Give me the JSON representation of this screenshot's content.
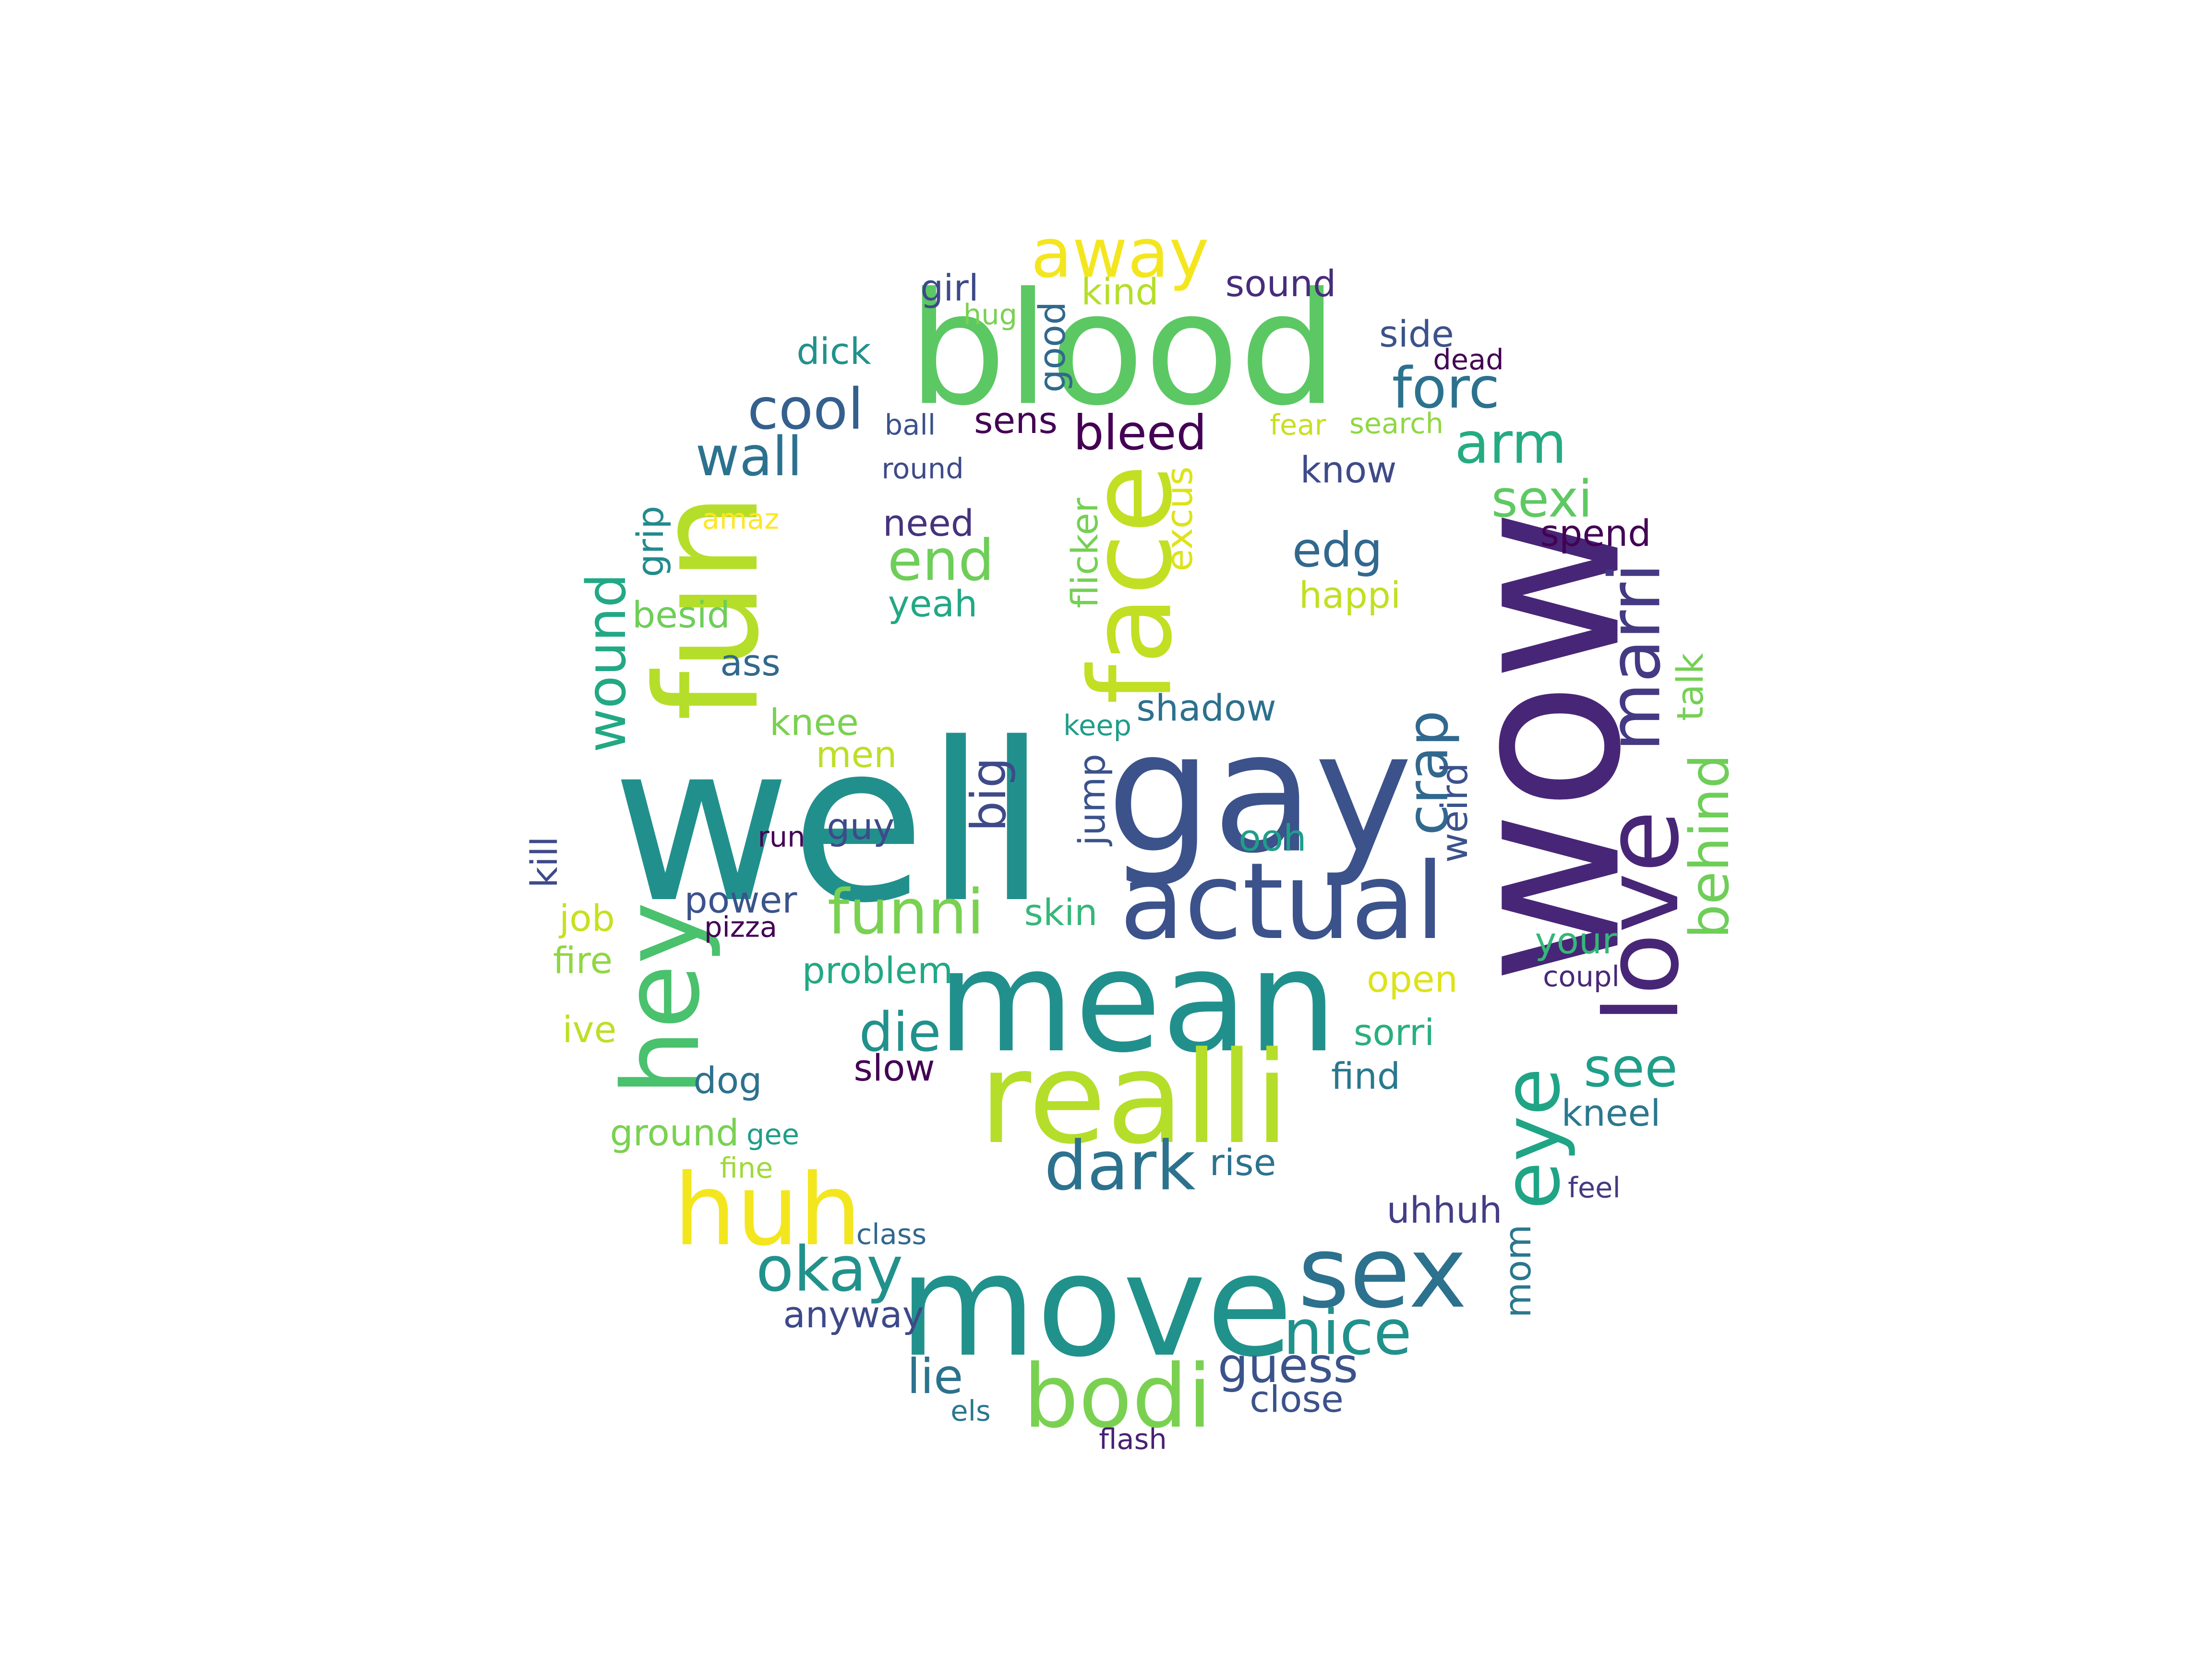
{
  "colors": {
    "background": "#ffffff",
    "palette": [
      "#440154",
      "#472c7a",
      "#3b518b",
      "#2c718e",
      "#21908d",
      "#27ad81",
      "#5cc863",
      "#aadc32",
      "#fde725"
    ]
  },
  "words": [
    {
      "text": "well",
      "weight": 1.0,
      "color": "#21908d"
    },
    {
      "text": "wow",
      "weight": 0.9,
      "color": "#482677"
    },
    {
      "text": "gay",
      "weight": 0.78,
      "color": "#3b528b"
    },
    {
      "text": "blood",
      "weight": 0.74,
      "color": "#5cc863"
    },
    {
      "text": "mean",
      "weight": 0.66,
      "color": "#21908d"
    },
    {
      "text": "move",
      "weight": 0.66,
      "color": "#21918c"
    },
    {
      "text": "fun",
      "weight": 0.62,
      "color": "#b5de2b"
    },
    {
      "text": "realli",
      "weight": 0.58,
      "color": "#b5de2b"
    },
    {
      "text": "face",
      "weight": 0.54,
      "color": "#c2df23"
    },
    {
      "text": "actual",
      "weight": 0.5,
      "color": "#3b528b"
    },
    {
      "text": "love",
      "weight": 0.48,
      "color": "#482677"
    },
    {
      "text": "hey",
      "weight": 0.48,
      "color": "#4ac16d"
    },
    {
      "text": "sex",
      "weight": 0.46,
      "color": "#2c718e"
    },
    {
      "text": "huh",
      "weight": 0.46,
      "color": "#f4e61e"
    },
    {
      "text": "bodi",
      "weight": 0.44,
      "color": "#7ad151"
    },
    {
      "text": "eye",
      "weight": 0.4,
      "color": "#20a486"
    },
    {
      "text": "away",
      "weight": 0.38,
      "color": "#f4e61e"
    },
    {
      "text": "marri",
      "weight": 0.36,
      "color": "#443983"
    },
    {
      "text": "dark",
      "weight": 0.36,
      "color": "#2c728e"
    },
    {
      "text": "okay",
      "weight": 0.34,
      "color": "#21918c"
    },
    {
      "text": "nice",
      "weight": 0.34,
      "color": "#21918c"
    },
    {
      "text": "funni",
      "weight": 0.34,
      "color": "#7ad151"
    },
    {
      "text": "crap",
      "weight": 0.32,
      "color": "#31688e"
    },
    {
      "text": "forc",
      "weight": 0.32,
      "color": "#2c728e"
    },
    {
      "text": "arm",
      "weight": 0.32,
      "color": "#25ab82"
    },
    {
      "text": "end",
      "weight": 0.32,
      "color": "#6ece58"
    },
    {
      "text": "wound",
      "weight": 0.32,
      "color": "#22a884"
    },
    {
      "text": "cool",
      "weight": 0.3,
      "color": "#355f8d"
    },
    {
      "text": "wall",
      "weight": 0.3,
      "color": "#2c728e"
    },
    {
      "text": "die",
      "weight": 0.3,
      "color": "#21918c"
    },
    {
      "text": "see",
      "weight": 0.3,
      "color": "#1f9e89"
    },
    {
      "text": "sexi",
      "weight": 0.3,
      "color": "#5ec962"
    },
    {
      "text": "behind",
      "weight": 0.3,
      "color": "#6ece58"
    },
    {
      "text": "guess",
      "weight": 0.28,
      "color": "#3b528b"
    },
    {
      "text": "bleed",
      "weight": 0.28,
      "color": "#440154"
    },
    {
      "text": "edg",
      "weight": 0.28,
      "color": "#31688e"
    },
    {
      "text": "big",
      "weight": 0.28,
      "color": "#3e4a89"
    },
    {
      "text": "lie",
      "weight": 0.28,
      "color": "#2c728e"
    },
    {
      "text": "problem",
      "weight": 0.22,
      "color": "#22a884"
    },
    {
      "text": "ground",
      "weight": 0.22,
      "color": "#7ad151"
    },
    {
      "text": "shadow",
      "weight": 0.22,
      "color": "#2c718e"
    },
    {
      "text": "dick",
      "weight": 0.22,
      "color": "#21918c"
    },
    {
      "text": "girl",
      "weight": 0.22,
      "color": "#3e4989"
    },
    {
      "text": "sound",
      "weight": 0.22,
      "color": "#472d7b"
    },
    {
      "text": "need",
      "weight": 0.22,
      "color": "#46327e"
    },
    {
      "text": "yeah",
      "weight": 0.22,
      "color": "#22a884"
    },
    {
      "text": "happi",
      "weight": 0.22,
      "color": "#c2df23"
    },
    {
      "text": "besid",
      "weight": 0.22,
      "color": "#6ece58"
    },
    {
      "text": "knee",
      "weight": 0.22,
      "color": "#7ad151"
    },
    {
      "text": "men",
      "weight": 0.22,
      "color": "#bddf26"
    },
    {
      "text": "guy",
      "weight": 0.22,
      "color": "#3e4a89"
    },
    {
      "text": "ooh",
      "weight": 0.22,
      "color": "#1f9e89"
    },
    {
      "text": "power",
      "weight": 0.22,
      "color": "#3b528b"
    },
    {
      "text": "skin",
      "weight": 0.22,
      "color": "#35b779"
    },
    {
      "text": "open",
      "weight": 0.22,
      "color": "#dde318"
    },
    {
      "text": "sorri",
      "weight": 0.22,
      "color": "#29af7f"
    },
    {
      "text": "find",
      "weight": 0.22,
      "color": "#2a788e"
    },
    {
      "text": "slow",
      "weight": 0.22,
      "color": "#440154"
    },
    {
      "text": "dog",
      "weight": 0.22,
      "color": "#2c728e"
    },
    {
      "text": "rise",
      "weight": 0.22,
      "color": "#2c728e"
    },
    {
      "text": "kneel",
      "weight": 0.22,
      "color": "#2a788e"
    },
    {
      "text": "uhhuh",
      "weight": 0.22,
      "color": "#433e85"
    },
    {
      "text": "anyway",
      "weight": 0.22,
      "color": "#3e4989"
    },
    {
      "text": "close",
      "weight": 0.22,
      "color": "#3b528b"
    },
    {
      "text": "job",
      "weight": 0.22,
      "color": "#c8e020"
    },
    {
      "text": "fire",
      "weight": 0.22,
      "color": "#90d743"
    },
    {
      "text": "ive",
      "weight": 0.22,
      "color": "#bddf26"
    },
    {
      "text": "ass",
      "weight": 0.22,
      "color": "#31688e"
    },
    {
      "text": "know",
      "weight": 0.22,
      "color": "#3e4a89"
    },
    {
      "text": "spend",
      "weight": 0.22,
      "color": "#440154"
    },
    {
      "text": "side",
      "weight": 0.22,
      "color": "#3b528b"
    },
    {
      "text": "kind",
      "weight": 0.22,
      "color": "#b5de2b"
    },
    {
      "text": "sens",
      "weight": 0.22,
      "color": "#440154"
    },
    {
      "text": "your",
      "weight": 0.22,
      "color": "#35b779"
    },
    {
      "text": "flicker",
      "weight": 0.22,
      "color": "#75d054"
    },
    {
      "text": "excus",
      "weight": 0.22,
      "color": "#dde318"
    },
    {
      "text": "kill",
      "weight": 0.22,
      "color": "#3e4a89"
    },
    {
      "text": "jump",
      "weight": 0.22,
      "color": "#3b528b"
    },
    {
      "text": "good",
      "weight": 0.22,
      "color": "#31688e"
    },
    {
      "text": "weird",
      "weight": 0.22,
      "color": "#3b528b"
    },
    {
      "text": "mom",
      "weight": 0.22,
      "color": "#2a788e"
    },
    {
      "text": "grip",
      "weight": 0.22,
      "color": "#238a8d"
    },
    {
      "text": "talk",
      "weight": 0.22,
      "color": "#75d054"
    },
    {
      "text": "hug",
      "weight": 0.16,
      "color": "#7ad151"
    },
    {
      "text": "ball",
      "weight": 0.16,
      "color": "#3b528b"
    },
    {
      "text": "round",
      "weight": 0.16,
      "color": "#3e4a89"
    },
    {
      "text": "fear",
      "weight": 0.16,
      "color": "#c8e020"
    },
    {
      "text": "search",
      "weight": 0.16,
      "color": "#90d743"
    },
    {
      "text": "dead",
      "weight": 0.16,
      "color": "#440154"
    },
    {
      "text": "amaz",
      "weight": 0.16,
      "color": "#fde725"
    },
    {
      "text": "keep",
      "weight": 0.16,
      "color": "#1f9e89"
    },
    {
      "text": "run",
      "weight": 0.16,
      "color": "#440154"
    },
    {
      "text": "pizza",
      "weight": 0.16,
      "color": "#440154"
    },
    {
      "text": "coupl",
      "weight": 0.16,
      "color": "#482878"
    },
    {
      "text": "gee",
      "weight": 0.16,
      "color": "#1f9e89"
    },
    {
      "text": "fine",
      "weight": 0.16,
      "color": "#a0da39"
    },
    {
      "text": "feel",
      "weight": 0.16,
      "color": "#443983"
    },
    {
      "text": "class",
      "weight": 0.16,
      "color": "#31688e"
    },
    {
      "text": "els",
      "weight": 0.16,
      "color": "#2a788e"
    },
    {
      "text": "flash",
      "weight": 0.16,
      "color": "#482173"
    }
  ]
}
